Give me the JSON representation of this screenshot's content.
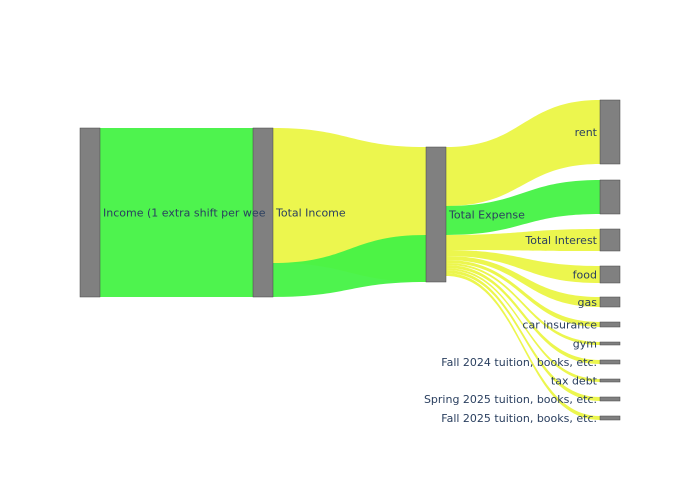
{
  "chart_data": {
    "type": "sankey",
    "title": "",
    "nodes": [
      {
        "id": "income",
        "label": "Income (1 extra shift per wee"
      },
      {
        "id": "total_income",
        "label": "Total Income"
      },
      {
        "id": "total_expense",
        "label": "Total Expense"
      },
      {
        "id": "rent",
        "label": "rent"
      },
      {
        "id": "unlabeled",
        "label": ""
      },
      {
        "id": "total_interest",
        "label": "Total Interest"
      },
      {
        "id": "food",
        "label": "food"
      },
      {
        "id": "gas",
        "label": "gas"
      },
      {
        "id": "car_insurance",
        "label": "car insurance"
      },
      {
        "id": "gym",
        "label": "gym"
      },
      {
        "id": "fall_2024",
        "label": "Fall 2024 tuition, books, etc."
      },
      {
        "id": "tax_debt",
        "label": "tax debt"
      },
      {
        "id": "spring_2025",
        "label": "Spring 2025 tuition, books, etc."
      },
      {
        "id": "fall_2025",
        "label": "Fall 2025 tuition, books, etc."
      }
    ],
    "links": [
      {
        "source": "income",
        "target": "total_income",
        "value": 100,
        "color": "#44f244"
      },
      {
        "source": "total_income",
        "target": "total_expense",
        "value": 79,
        "color": "#ebf544"
      },
      {
        "source": "total_income",
        "target": "total_expense",
        "value": 21,
        "color": "#44f244"
      },
      {
        "source": "total_expense",
        "target": "rent",
        "value": 38,
        "color": "#ebf544"
      },
      {
        "source": "total_expense",
        "target": "unlabeled",
        "value": 20,
        "color": "#44f244"
      },
      {
        "source": "total_expense",
        "target": "total_interest",
        "value": 13,
        "color": "#ebf544"
      },
      {
        "source": "total_expense",
        "target": "food",
        "value": 10,
        "color": "#ebf544"
      },
      {
        "source": "total_expense",
        "target": "gas",
        "value": 6,
        "color": "#ebf544"
      },
      {
        "source": "total_expense",
        "target": "car_insurance",
        "value": 3.5,
        "color": "#ebf544"
      },
      {
        "source": "total_expense",
        "target": "gym",
        "value": 2,
        "color": "#ebf544"
      },
      {
        "source": "total_expense",
        "target": "fall_2024",
        "value": 2.5,
        "color": "#ebf544"
      },
      {
        "source": "total_expense",
        "target": "tax_debt",
        "value": 2,
        "color": "#ebf544"
      },
      {
        "source": "total_expense",
        "target": "spring_2025",
        "value": 2.5,
        "color": "#ebf544"
      },
      {
        "source": "total_expense",
        "target": "fall_2025",
        "value": 2.5,
        "color": "#ebf544"
      }
    ],
    "node_color": "#808080",
    "node_border": "#444444",
    "colors": {
      "green": "#44f244",
      "yellow": "#ebf544"
    }
  }
}
